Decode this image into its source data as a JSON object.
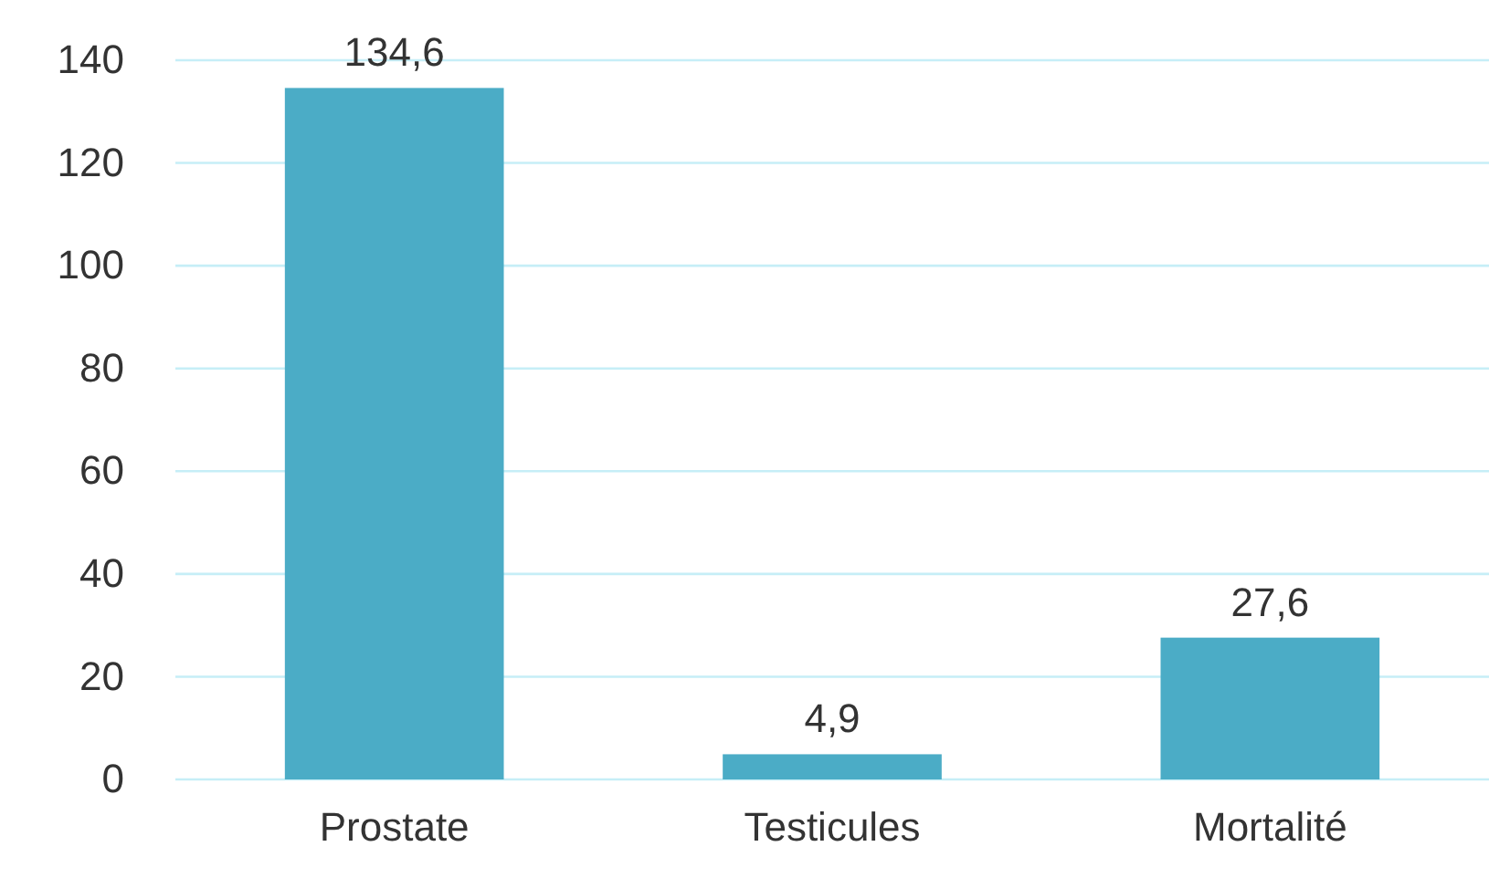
{
  "chart_data": {
    "type": "bar",
    "categories": [
      "Prostate",
      "Testicules",
      "Mortalité"
    ],
    "values": [
      134.6,
      4.9,
      27.6
    ],
    "value_labels": [
      "134,6",
      "4,9",
      "27,6"
    ],
    "color": "#4bacc6",
    "ylim": [
      0,
      140
    ],
    "yticks": [
      0,
      20,
      40,
      60,
      80,
      100,
      120,
      140
    ],
    "grid": "y"
  }
}
